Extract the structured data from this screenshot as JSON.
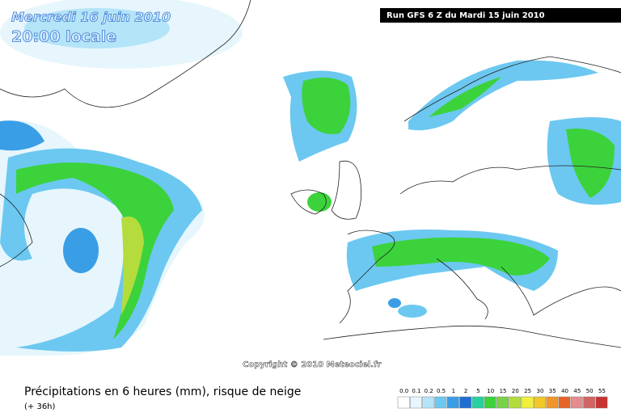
{
  "header": {
    "date": "Mercredi 16 juin 2010",
    "time": "20:00 locale",
    "run": "Run GFS 6 Z du Mardi 15 juin 2010"
  },
  "copyright": "Copyright © 2010 Meteociel.fr",
  "footer": {
    "title": "Précipitations en 6 heures (mm), risque de neige",
    "lead": "(+ 36h)"
  },
  "legend": {
    "items": [
      {
        "label": "0.0",
        "color": "#ffffff"
      },
      {
        "label": "0.1",
        "color": "#e6f6fc"
      },
      {
        "label": "0.2",
        "color": "#b4e4f8"
      },
      {
        "label": "0.5",
        "color": "#6cc8f0"
      },
      {
        "label": "1",
        "color": "#3a9ee6"
      },
      {
        "label": "2",
        "color": "#1e6ed2"
      },
      {
        "label": "5",
        "color": "#26d0a0"
      },
      {
        "label": "10",
        "color": "#3cd23c"
      },
      {
        "label": "15",
        "color": "#78d246"
      },
      {
        "label": "20",
        "color": "#b4dc3c"
      },
      {
        "label": "25",
        "color": "#f0f03c"
      },
      {
        "label": "30",
        "color": "#f0c828"
      },
      {
        "label": "35",
        "color": "#f09628"
      },
      {
        "label": "40",
        "color": "#e66428"
      },
      {
        "label": "45",
        "color": "#e68c8c"
      },
      {
        "label": "50",
        "color": "#d26464"
      },
      {
        "label": "55",
        "color": "#c83232"
      }
    ]
  }
}
